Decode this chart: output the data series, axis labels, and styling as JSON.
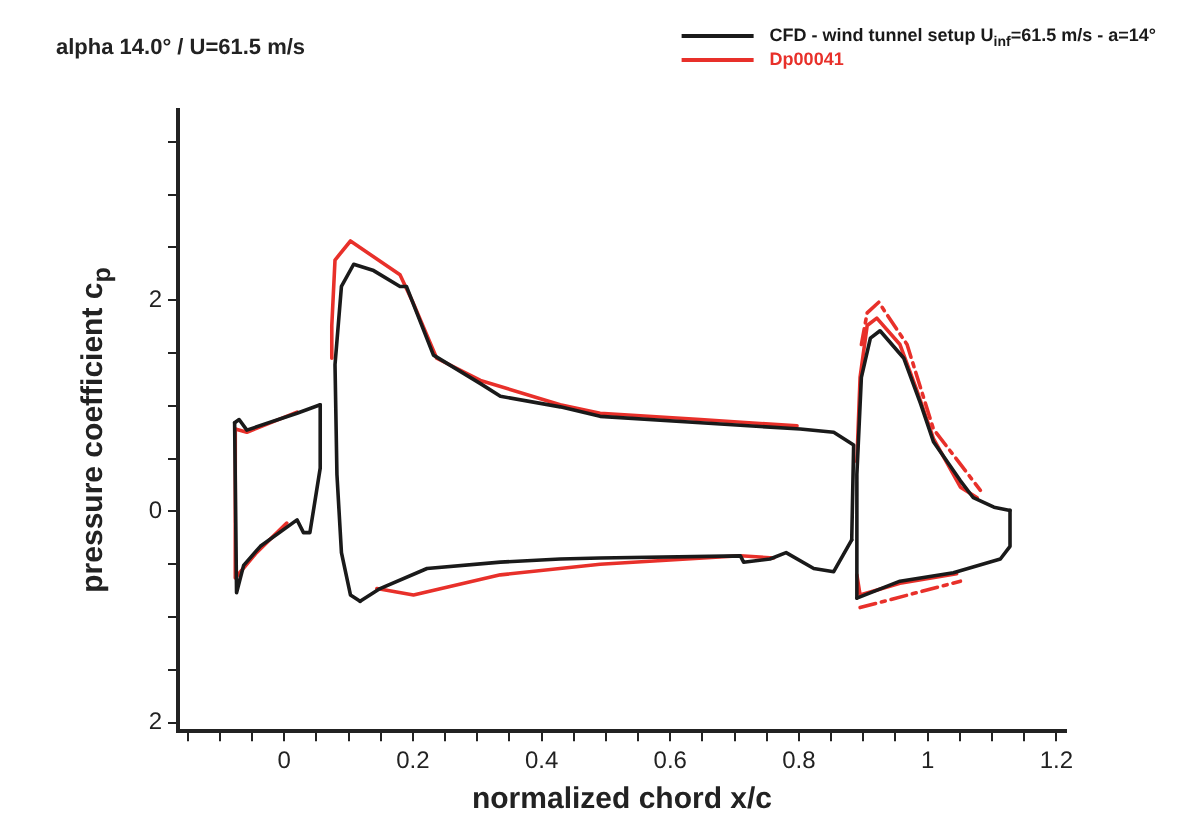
{
  "chart_data": {
    "type": "line",
    "title": "alpha 14.0° / U=61.5 m/s",
    "xlabel": "normalized chord x/c",
    "ylabel": "pressure coefficient c$_{p}$",
    "xlim": [
      -0.165,
      1.215
    ],
    "ylim": [
      2.08,
      -3.8
    ],
    "xticks": [
      {
        "value": -0.15,
        "label": null
      },
      {
        "value": -0.1,
        "label": null
      },
      {
        "value": -0.05,
        "label": null
      },
      0,
      {
        "value": 0.05,
        "label": null
      },
      {
        "value": 0.1,
        "label": null
      },
      {
        "value": 0.15,
        "label": null
      },
      0.2,
      {
        "value": 0.25,
        "label": null
      },
      {
        "value": 0.3,
        "label": null
      },
      {
        "value": 0.35,
        "label": null
      },
      0.4,
      {
        "value": 0.45,
        "label": null
      },
      {
        "value": 0.5,
        "label": null
      },
      {
        "value": 0.55,
        "label": null
      },
      0.6,
      {
        "value": 0.65,
        "label": null
      },
      {
        "value": 0.7,
        "label": null
      },
      {
        "value": 0.75,
        "label": null
      },
      0.8,
      {
        "value": 0.85,
        "label": null
      },
      {
        "value": 0.9,
        "label": null
      },
      {
        "value": 0.95,
        "label": null
      },
      1,
      {
        "value": 1.05,
        "label": null
      },
      {
        "value": 1.1,
        "label": null
      },
      {
        "value": 1.15,
        "label": null
      },
      1.2
    ],
    "yticks": [
      {
        "value": -3.5,
        "label": null
      },
      {
        "value": -3,
        "label": null
      },
      {
        "value": -2.5,
        "label": null
      },
      {
        "value": -2,
        "label": "2"
      },
      {
        "value": -1.5,
        "label": null
      },
      {
        "value": -1,
        "label": null
      },
      {
        "value": -0.5,
        "label": null
      },
      0,
      {
        "value": 0.5,
        "label": null
      },
      {
        "value": 1,
        "label": null
      },
      {
        "value": 1.5,
        "label": null
      },
      2
    ],
    "grid": false,
    "legend": "top right",
    "marker": "none",
    "series": [
      {
        "name": "CFD - wind tunnel setup U$_{inf}$=61.5 m/s - a=14°",
        "color": "#1a1a1a",
        "line_style": "solid",
        "x": [
          0.89,
          0.89,
          0.897,
          0.911,
          0.926,
          0.963,
          0.989,
          1.009,
          1.051,
          1.071,
          1.103,
          1.128
        ],
        "values": [
          0.82,
          -0.35,
          -1.27,
          -1.64,
          -1.71,
          -1.45,
          -1.02,
          -0.66,
          -0.29,
          -0.13,
          -0.04,
          -0.01
        ]
      },
      {
        "color": "#1a1a1a",
        "line_style": "solid",
        "x": [
          0.89,
          0.957,
          1.04,
          1.113,
          1.128,
          1.128
        ],
        "values": [
          0.82,
          0.66,
          0.58,
          0.45,
          0.33,
          -0.01
        ]
      },
      {
        "color": "#1a1a1a",
        "line_style": "solid",
        "x": [
          -0.077,
          -0.07,
          -0.058,
          0.02,
          0.056
        ],
        "values": [
          -0.84,
          -0.87,
          -0.77,
          -0.93,
          -1.01
        ]
      },
      {
        "color": "#1a1a1a",
        "line_style": "solid",
        "x": [
          -0.077,
          -0.074,
          -0.063,
          -0.037,
          0.02,
          0.03,
          0.04,
          0.056,
          0.056
        ],
        "values": [
          -0.84,
          0.77,
          0.51,
          0.33,
          0.08,
          0.2,
          0.2,
          -0.41,
          -1.01
        ]
      },
      {
        "color": "#1a1a1a",
        "line_style": "solid",
        "x": [
          0.118,
          0.103,
          0.089,
          0.082,
          0.079,
          0.089,
          0.108,
          0.139,
          0.18,
          0.19,
          0.232,
          0.305,
          0.336,
          0.429,
          0.491,
          0.647,
          0.802,
          0.854,
          0.885,
          0.882
        ],
        "values": [
          0.85,
          0.79,
          0.39,
          -0.35,
          -1.39,
          -2.13,
          -2.34,
          -2.28,
          -2.13,
          -2.13,
          -1.48,
          -1.21,
          -1.09,
          -0.99,
          -0.9,
          -0.84,
          -0.78,
          -0.75,
          -0.63,
          0.27
        ]
      },
      {
        "color": "#1a1a1a",
        "line_style": "solid",
        "x": [
          0.118,
          0.149,
          0.222,
          0.336,
          0.429,
          0.491,
          0.709,
          0.714,
          0.755,
          0.78,
          0.823,
          0.854,
          0.882
        ],
        "values": [
          0.85,
          0.73,
          0.54,
          0.48,
          0.45,
          0.44,
          0.42,
          0.48,
          0.45,
          0.39,
          0.54,
          0.57,
          0.27
        ]
      },
      {
        "name": "Dp00041",
        "color": "#e8302a",
        "line_style": "solid",
        "x": [
          0.074,
          0.074,
          0.079,
          0.103,
          0.18,
          0.2,
          0.237,
          0.305,
          0.429,
          0.491,
          0.647,
          0.797
        ],
        "values": [
          -1.45,
          -1.76,
          -2.38,
          -2.56,
          -2.24,
          -1.98,
          -1.45,
          -1.24,
          -1.01,
          -0.93,
          -0.87,
          -0.81
        ]
      },
      {
        "color": "#e8302a",
        "line_style": "solid",
        "x": [
          0.144,
          0.201,
          0.336,
          0.491,
          0.709,
          0.761
        ],
        "values": [
          0.73,
          0.79,
          0.6,
          0.5,
          0.42,
          0.44
        ]
      },
      {
        "color": "#e8302a",
        "line_style": "solid",
        "x": [
          -0.076,
          -0.058,
          0.02
        ],
        "values": [
          -0.78,
          -0.75,
          -0.94
        ]
      },
      {
        "color": "#e8302a",
        "line_style": "solid",
        "x": [
          -0.076,
          -0.076,
          -0.043,
          0.004
        ],
        "values": [
          -0.78,
          0.63,
          0.39,
          0.11
        ]
      },
      {
        "color": "#e8302a",
        "line_style": "solid",
        "x": [
          0.89,
          0.895,
          0.906,
          0.921,
          0.957,
          0.983,
          1.009,
          1.051,
          1.077
        ],
        "values": [
          -0.47,
          -1.27,
          -1.76,
          -1.83,
          -1.58,
          -1.15,
          -0.69,
          -0.23,
          -0.13
        ]
      },
      {
        "color": "#e8302a",
        "line_style": "solid",
        "x": [
          0.89,
          0.895,
          0.957,
          1.045
        ],
        "values": [
          0.6,
          0.79,
          0.68,
          0.59
        ]
      },
      {
        "color": "#e8302a",
        "line_style": "dashed",
        "x": [
          0.897,
          0.906,
          0.924,
          0.968,
          1.009,
          1.082
        ],
        "values": [
          -1.58,
          -1.88,
          -1.98,
          -1.58,
          -0.78,
          -0.2
        ]
      },
      {
        "color": "#e8302a",
        "line_style": "dashed",
        "x": [
          0.895,
          1.051
        ],
        "values": [
          0.91,
          0.66
        ]
      }
    ]
  }
}
